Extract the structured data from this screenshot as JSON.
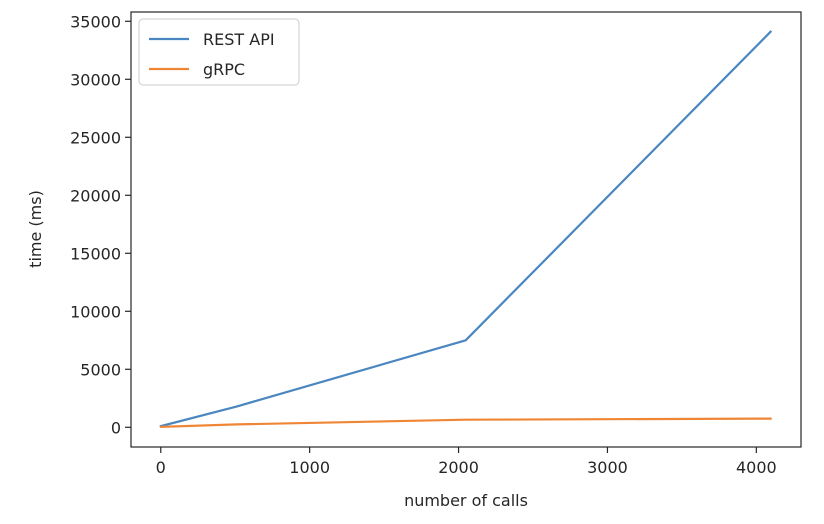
{
  "chart_data": {
    "type": "line",
    "xlabel": "number of calls",
    "ylabel": "time (ms)",
    "xlim": [
      -200,
      4300
    ],
    "ylim": [
      -1700,
      35800
    ],
    "xticks": [
      0,
      1000,
      2000,
      3000,
      4000
    ],
    "yticks": [
      0,
      5000,
      10000,
      15000,
      20000,
      25000,
      30000,
      35000
    ],
    "grid": false,
    "legend_position": "top-left",
    "series": [
      {
        "name": "REST API",
        "color": "#4a86c0",
        "x": [
          1,
          512,
          2048,
          4096
        ],
        "y": [
          100,
          1800,
          7500,
          34100
        ]
      },
      {
        "name": "gRPC",
        "color": "#ef8636",
        "x": [
          1,
          512,
          2048,
          4096
        ],
        "y": [
          30,
          250,
          650,
          750
        ]
      }
    ]
  }
}
